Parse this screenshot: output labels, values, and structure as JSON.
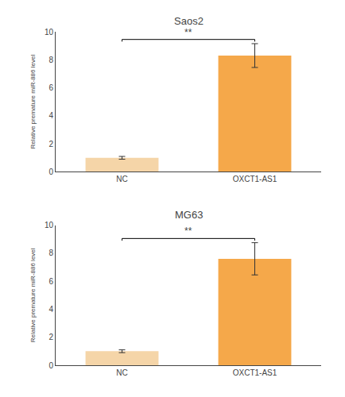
{
  "chart_data": [
    {
      "type": "bar",
      "title": "Saos2",
      "ylabel": "Relative premature miR-886 level",
      "categories": [
        "NC",
        "OXCT1-AS1"
      ],
      "values": [
        1.0,
        8.3
      ],
      "errors": [
        0.1,
        0.85
      ],
      "colors": [
        "#f5d5a8",
        "#f5a84a"
      ],
      "ylim": [
        0,
        10
      ],
      "yticks": [
        0,
        2,
        4,
        6,
        8,
        10
      ],
      "grid": false,
      "annotations": [
        "**"
      ]
    },
    {
      "type": "bar",
      "title": "MG63",
      "ylabel": "Relative premature miR-886 level",
      "categories": [
        "NC",
        "OXCT1-AS1"
      ],
      "values": [
        1.0,
        7.6
      ],
      "errors": [
        0.1,
        1.15
      ],
      "colors": [
        "#f5d5a8",
        "#f5a84a"
      ],
      "ylim": [
        0,
        10
      ],
      "yticks": [
        0,
        2,
        4,
        6,
        8,
        10
      ],
      "grid": false,
      "annotations": [
        "**"
      ]
    }
  ]
}
